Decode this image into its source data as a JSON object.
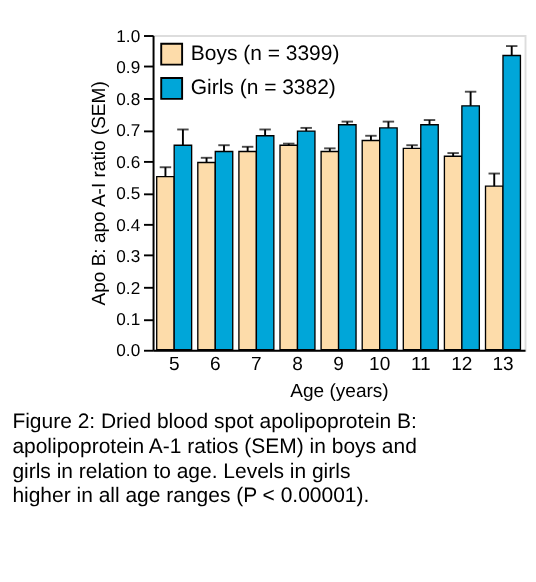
{
  "chart_data": {
    "type": "bar",
    "xlabel": "Age (years)",
    "ylabel": "Apo B: apo A-I ratio (SEM)",
    "categories": [
      "5",
      "6",
      "7",
      "8",
      "9",
      "10",
      "11",
      "12",
      "13"
    ],
    "series": [
      {
        "name": "Boys (n = 3399)",
        "color": "#fddcaa",
        "values": [
          0.55,
          0.595,
          0.63,
          0.65,
          0.63,
          0.665,
          0.64,
          0.615,
          0.52
        ],
        "errors": [
          [
            0.55,
            0.58
          ],
          [
            0.595,
            0.61
          ],
          [
            0.63,
            0.645
          ],
          [
            0.65,
            0.655
          ],
          [
            0.63,
            0.64
          ],
          [
            0.665,
            0.68
          ],
          [
            0.64,
            0.65
          ],
          [
            0.615,
            0.625
          ],
          [
            0.52,
            0.56
          ]
        ]
      },
      {
        "name": "Girls (n = 3382)",
        "color": "#00a6d9",
        "values": [
          0.65,
          0.63,
          0.68,
          0.695,
          0.715,
          0.705,
          0.715,
          0.775,
          0.935
        ],
        "errors": [
          [
            0.65,
            0.7
          ],
          [
            0.63,
            0.65
          ],
          [
            0.68,
            0.7
          ],
          [
            0.695,
            0.705
          ],
          [
            0.715,
            0.725
          ],
          [
            0.705,
            0.725
          ],
          [
            0.715,
            0.73
          ],
          [
            0.775,
            0.82
          ],
          [
            0.935,
            0.965
          ]
        ]
      }
    ],
    "ylim": [
      0,
      1
    ],
    "yticks": [
      {
        "value": 0,
        "label": "0.0"
      },
      0.1,
      0.2,
      0.3,
      0.4,
      0.5,
      0.6,
      0.7,
      0.8,
      0.9,
      {
        "value": 1,
        "label": "1.0"
      }
    ],
    "grid": false,
    "legend": "top left",
    "annotations": [
      "Figure 2: Dried blood spot apolipoprotein B: apolipoprotein A-1 ratios (SEM) in boys and girls in relation to age. Levels in girls higher in all age ranges (P < 0.00001)."
    ]
  }
}
